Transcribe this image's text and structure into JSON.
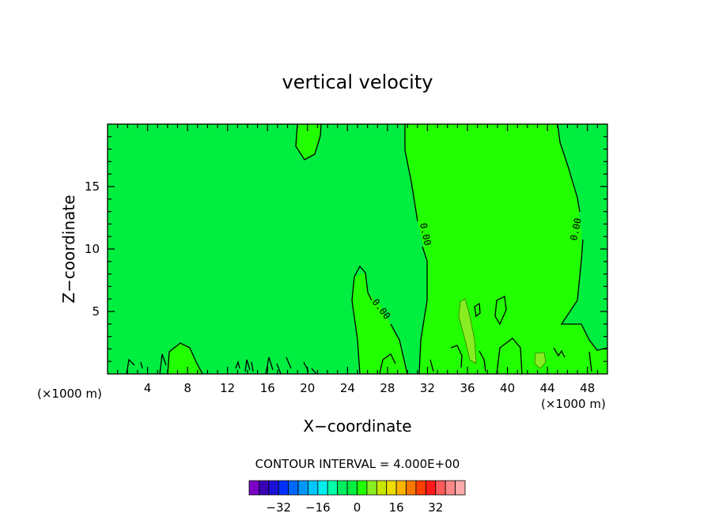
{
  "chart_data": {
    "type": "heatmap",
    "title": "vertical velocity",
    "xlabel": "X−coordinate",
    "ylabel": "Z−coordinate",
    "x_unit": "(×1000 m)",
    "x_unit_right": "(×1000 m)",
    "xlim": [
      0,
      50
    ],
    "ylim": [
      0,
      20
    ],
    "x_ticks": [
      4,
      8,
      12,
      16,
      20,
      24,
      28,
      32,
      36,
      40,
      44,
      48
    ],
    "y_ticks": [
      5,
      10,
      15
    ],
    "contour_interval_text": "CONTOUR INTERVAL = 4.000E+00",
    "contour_labels": [
      "0.00",
      "0.00",
      "0.00"
    ],
    "background_level_color": "#00ee40",
    "positive_level_color": "#22ff00",
    "strong_positive_color": "#88ee22",
    "colorbar": {
      "labels": [
        "−32",
        "−16",
        "0",
        "16",
        "32"
      ],
      "colors": [
        "#7a00c8",
        "#3a00b4",
        "#1a10d8",
        "#0030ff",
        "#0068ff",
        "#0098ff",
        "#00c8ff",
        "#00eeee",
        "#00ffa8",
        "#00ee60",
        "#00ee40",
        "#22ff00",
        "#88ee22",
        "#c8e600",
        "#eedd00",
        "#ffb400",
        "#ff7800",
        "#ff4000",
        "#ff1a1a",
        "#ff5a5a",
        "#ff8888",
        "#ffaaaa"
      ]
    }
  }
}
